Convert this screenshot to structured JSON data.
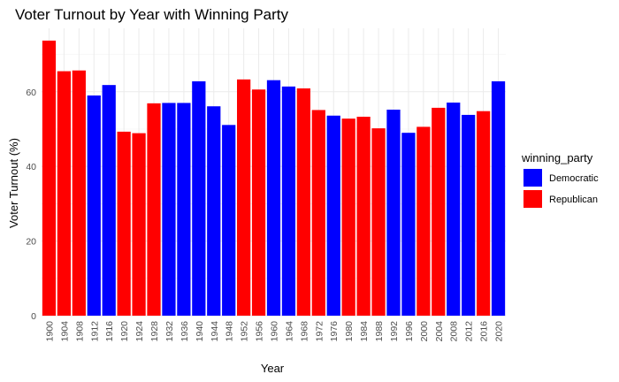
{
  "chart_data": {
    "type": "bar",
    "title": "Voter Turnout by Year with Winning Party",
    "xlabel": "Year",
    "ylabel": "Voter Turnout (%)",
    "ylim": [
      0,
      77
    ],
    "yticks": [
      0,
      20,
      40,
      60
    ],
    "grid": true,
    "legend": {
      "title": "winning_party",
      "placement": "right",
      "entries": [
        {
          "label": "Democratic",
          "color": "#0000ff"
        },
        {
          "label": "Republican",
          "color": "#ff0000"
        }
      ]
    },
    "categories": [
      "1900",
      "1904",
      "1908",
      "1912",
      "1916",
      "1920",
      "1924",
      "1928",
      "1932",
      "1936",
      "1940",
      "1944",
      "1948",
      "1952",
      "1956",
      "1960",
      "1964",
      "1968",
      "1972",
      "1976",
      "1980",
      "1984",
      "1988",
      "1992",
      "1996",
      "2000",
      "2004",
      "2008",
      "2012",
      "2016",
      "2020"
    ],
    "values": [
      73.7,
      65.5,
      65.7,
      59.0,
      61.8,
      49.3,
      48.9,
      56.9,
      57.0,
      57.0,
      62.8,
      56.1,
      51.1,
      63.3,
      60.6,
      63.1,
      61.4,
      60.9,
      55.1,
      53.6,
      52.8,
      53.3,
      50.2,
      55.2,
      49.0,
      50.6,
      55.7,
      57.1,
      53.8,
      54.8,
      62.8
    ],
    "parties": [
      "Republican",
      "Republican",
      "Republican",
      "Democratic",
      "Democratic",
      "Republican",
      "Republican",
      "Republican",
      "Democratic",
      "Democratic",
      "Democratic",
      "Democratic",
      "Democratic",
      "Republican",
      "Republican",
      "Democratic",
      "Democratic",
      "Republican",
      "Republican",
      "Democratic",
      "Republican",
      "Republican",
      "Republican",
      "Democratic",
      "Democratic",
      "Republican",
      "Republican",
      "Democratic",
      "Democratic",
      "Republican",
      "Democratic"
    ]
  }
}
